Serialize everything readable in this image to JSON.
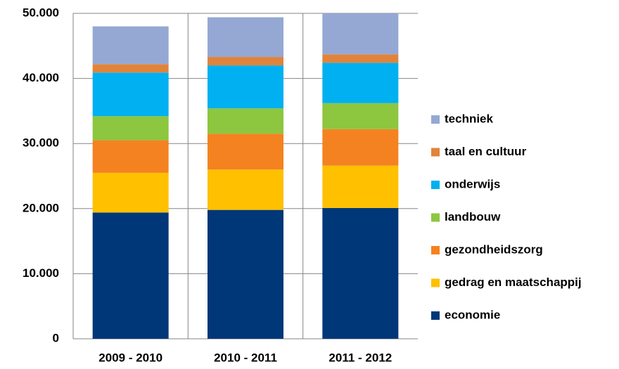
{
  "chart_data": {
    "type": "stacked_bar",
    "categories": [
      "2009 - 2010",
      "2010 - 2011",
      "2011 - 2012"
    ],
    "series": [
      {
        "name": "economie",
        "color": "#003778",
        "values": [
          19400,
          19800,
          20100
        ]
      },
      {
        "name": "gedrag en maatschappij",
        "color": "#ffc000",
        "values": [
          6100,
          6200,
          6500
        ]
      },
      {
        "name": "gezondheidszorg",
        "color": "#f58220",
        "values": [
          5000,
          5500,
          5600
        ]
      },
      {
        "name": "landbouw",
        "color": "#8dc63f",
        "values": [
          3700,
          3900,
          4000
        ]
      },
      {
        "name": "onderwijs",
        "color": "#00b0f0",
        "values": [
          6700,
          6600,
          6200
        ]
      },
      {
        "name": "taal en cultuur",
        "color": "#e0843c",
        "values": [
          1300,
          1300,
          1300
        ]
      },
      {
        "name": "techniek",
        "color": "#95a8d4",
        "values": [
          5800,
          6100,
          6300
        ]
      }
    ],
    "ylim": [
      0,
      50000
    ],
    "yticks": [
      0,
      {
        "value": 10000,
        "label": "10.000"
      },
      {
        "value": 20000,
        "label": "20.000"
      },
      {
        "value": 30000,
        "label": "30.000"
      },
      {
        "value": 40000,
        "label": "40.000"
      },
      {
        "value": 50000,
        "label": "50.000"
      }
    ],
    "grid": true,
    "legend": "right"
  }
}
